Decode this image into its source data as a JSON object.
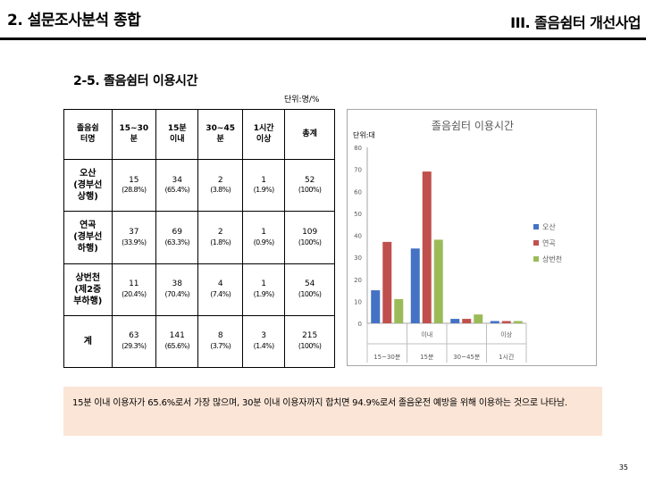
{
  "header": {
    "left_title": "2. 설문조사분석 종합",
    "right_title": "III. 졸음쉼터 개선사업"
  },
  "section_title": "2-5. 졸음쉼터 이용시간",
  "unit_note": "단위:명/%",
  "table": {
    "columns": [
      "졸음쉼\n터명",
      "15~30\n분",
      "15분\n이내",
      "30~45\n분",
      "1시간\n이상",
      "총계"
    ],
    "rows": [
      {
        "name": "오산\n(경부선\n상행)",
        "cells": [
          {
            "n": "15",
            "p": "(28.8%)"
          },
          {
            "n": "34",
            "p": "(65.4%)"
          },
          {
            "n": "2",
            "p": "(3.8%)"
          },
          {
            "n": "1",
            "p": "(1.9%)"
          },
          {
            "n": "52",
            "p": "(100%)"
          }
        ]
      },
      {
        "name": "연곡\n(경부선\n하행)",
        "cells": [
          {
            "n": "37",
            "p": "(33.9%)"
          },
          {
            "n": "69",
            "p": "(63.3%)"
          },
          {
            "n": "2",
            "p": "(1.8%)"
          },
          {
            "n": "1",
            "p": "(0.9%)"
          },
          {
            "n": "109",
            "p": "(100%)"
          }
        ]
      },
      {
        "name": "상번천\n(제2중\n부하행)",
        "cells": [
          {
            "n": "11",
            "p": "(20.4%)"
          },
          {
            "n": "38",
            "p": "(70.4%)"
          },
          {
            "n": "4",
            "p": "(7.4%)"
          },
          {
            "n": "1",
            "p": "(1.9%)"
          },
          {
            "n": "54",
            "p": "(100%)"
          }
        ]
      },
      {
        "name": "계",
        "cells": [
          {
            "n": "63",
            "p": "(29.3%)"
          },
          {
            "n": "141",
            "p": "(65.6%)"
          },
          {
            "n": "8",
            "p": "(3.7%)"
          },
          {
            "n": "3",
            "p": "(1.4%)"
          },
          {
            "n": "215",
            "p": "(100%)"
          }
        ]
      }
    ]
  },
  "chart_data": {
    "type": "bar",
    "title": "졸음쉼터 이용시간",
    "ylabel": "단위:대",
    "ylim": [
      0,
      80
    ],
    "yticks": [
      0,
      10,
      20,
      30,
      40,
      50,
      60,
      70,
      80
    ],
    "categories": [
      [
        "",
        "15~30분"
      ],
      [
        "이내",
        "15분"
      ],
      [
        "",
        "30~45분"
      ],
      [
        "이상",
        "1시간"
      ]
    ],
    "series": [
      {
        "name": "오산",
        "color": "#4472c4",
        "values": [
          15,
          34,
          2,
          1
        ]
      },
      {
        "name": "연곡",
        "color": "#c0504d",
        "values": [
          37,
          69,
          2,
          1
        ]
      },
      {
        "name": "상번천",
        "color": "#9bbb59",
        "values": [
          11,
          38,
          4,
          1
        ]
      }
    ],
    "legend": "right",
    "grid": false
  },
  "note": "15분 이내 이용자가 65.6%로서 가장 많으며, 30분 이내 이용자까지 합치면 94.9%로서 졸음운전 예방을 위해 이용하는 것으로 나타남.",
  "page_number": "35"
}
